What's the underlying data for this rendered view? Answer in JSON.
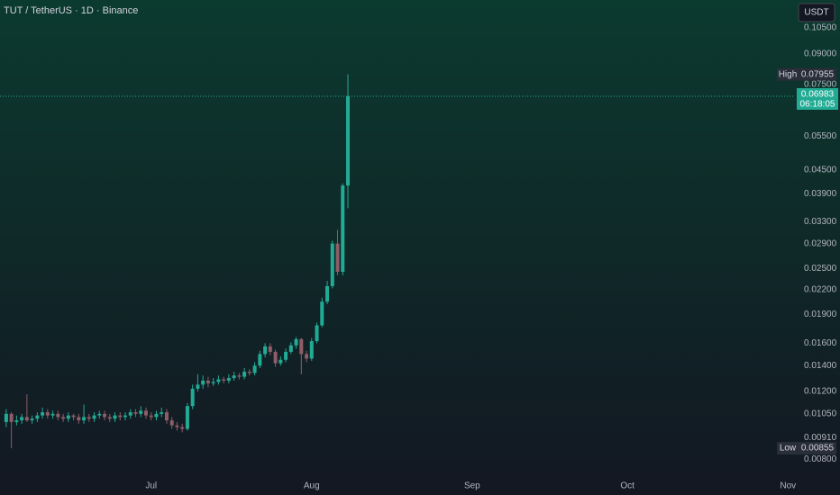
{
  "chart_data": {
    "type": "candlestick",
    "title": "TUT / TetherUS · 1D · Binance",
    "currency": "USDT",
    "log_scale": true,
    "up_color": "#22ab94",
    "down_color": "#8e5d67",
    "open": [
      0.01,
      0.0105,
      0.01,
      0.0101,
      0.0103,
      0.0101,
      0.0102,
      0.0104,
      0.0106,
      0.0104,
      0.0105,
      0.0103,
      0.0102,
      0.0104,
      0.0103,
      0.0101,
      0.0103,
      0.0102,
      0.0104,
      0.0105,
      0.0103,
      0.0102,
      0.0104,
      0.0103,
      0.0104,
      0.0106,
      0.0105,
      0.0107,
      0.0104,
      0.0103,
      0.0105,
      0.0106,
      0.0101,
      0.0098,
      0.0097,
      0.0096,
      0.011,
      0.0122,
      0.0125,
      0.0128,
      0.0126,
      0.0127,
      0.0129,
      0.0128,
      0.013,
      0.0132,
      0.0131,
      0.0135,
      0.0134,
      0.014,
      0.015,
      0.0157,
      0.0152,
      0.0142,
      0.0145,
      0.0152,
      0.0158,
      0.0164,
      0.015,
      0.0146,
      0.0162,
      0.0178,
      0.0205,
      0.0225,
      0.029,
      0.0245,
      0.041
    ],
    "high": [
      0.0108,
      0.0106,
      0.0104,
      0.0105,
      0.0118,
      0.0104,
      0.0106,
      0.0109,
      0.0108,
      0.0107,
      0.0107,
      0.0105,
      0.0106,
      0.0105,
      0.0105,
      0.0111,
      0.0105,
      0.0106,
      0.0107,
      0.0107,
      0.0105,
      0.0106,
      0.0106,
      0.0106,
      0.0108,
      0.0108,
      0.011,
      0.0109,
      0.0106,
      0.0107,
      0.0109,
      0.0108,
      0.0103,
      0.01,
      0.0099,
      0.0112,
      0.0125,
      0.0133,
      0.0132,
      0.0131,
      0.013,
      0.0132,
      0.0131,
      0.0133,
      0.0135,
      0.0134,
      0.0138,
      0.0137,
      0.0143,
      0.0153,
      0.016,
      0.016,
      0.0154,
      0.0148,
      0.0155,
      0.0161,
      0.0166,
      0.0165,
      0.0153,
      0.0165,
      0.0181,
      0.021,
      0.0232,
      0.0295,
      0.0315,
      0.0415,
      0.07955
    ],
    "low": [
      0.0097,
      0.00855,
      0.0098,
      0.0099,
      0.01,
      0.0099,
      0.01,
      0.0102,
      0.0102,
      0.0102,
      0.0101,
      0.01,
      0.01,
      0.0101,
      0.0099,
      0.0099,
      0.01,
      0.01,
      0.0102,
      0.0101,
      0.01,
      0.01,
      0.0101,
      0.0101,
      0.0102,
      0.0103,
      0.0103,
      0.0102,
      0.0101,
      0.0101,
      0.0103,
      0.0099,
      0.0096,
      0.0095,
      0.0094,
      0.0095,
      0.0108,
      0.012,
      0.0122,
      0.0123,
      0.0124,
      0.0125,
      0.0126,
      0.0126,
      0.0128,
      0.0129,
      0.0129,
      0.0132,
      0.0132,
      0.0138,
      0.0147,
      0.0149,
      0.0139,
      0.014,
      0.0143,
      0.015,
      0.0155,
      0.0133,
      0.0143,
      0.0144,
      0.016,
      0.0176,
      0.0202,
      0.0222,
      0.024,
      0.024,
      0.0358
    ],
    "close": [
      0.0105,
      0.01,
      0.0101,
      0.0103,
      0.0101,
      0.0102,
      0.0104,
      0.0106,
      0.0104,
      0.0105,
      0.0103,
      0.0102,
      0.0104,
      0.0103,
      0.0101,
      0.0103,
      0.0102,
      0.0104,
      0.0105,
      0.0103,
      0.0102,
      0.0104,
      0.0103,
      0.0104,
      0.0106,
      0.0105,
      0.0107,
      0.0104,
      0.0103,
      0.0105,
      0.0106,
      0.0101,
      0.0098,
      0.0097,
      0.0096,
      0.011,
      0.0122,
      0.0125,
      0.0128,
      0.0126,
      0.0127,
      0.0129,
      0.0128,
      0.013,
      0.0132,
      0.0131,
      0.0135,
      0.0134,
      0.014,
      0.015,
      0.0157,
      0.0152,
      0.0142,
      0.0145,
      0.0152,
      0.0158,
      0.0164,
      0.015,
      0.0146,
      0.0162,
      0.0178,
      0.0205,
      0.0225,
      0.029,
      0.0245,
      0.041,
      0.06983
    ],
    "countdown": "06:18:05",
    "high_marker": {
      "label": "High",
      "value": 0.07955
    },
    "low_marker": {
      "label": "Low",
      "value": 0.00855
    },
    "xlim": [
      -1.2,
      152
    ],
    "xticks": [
      {
        "value": 28,
        "label": "Jul"
      },
      {
        "value": 59,
        "label": "Aug"
      },
      {
        "value": 90,
        "label": "Sep"
      },
      {
        "value": 120,
        "label": "Oct"
      },
      {
        "value": 151,
        "label": "Nov"
      }
    ],
    "ylim": [
      0.0074,
      0.124
    ],
    "yticks": [
      {
        "value": 0.105,
        "label": "0.10500"
      },
      {
        "value": 0.09,
        "label": "0.09000"
      },
      {
        "value": 0.075,
        "label": "0.07500"
      },
      {
        "value": 0.055,
        "label": "0.05500"
      },
      {
        "value": 0.045,
        "label": "0.04500"
      },
      {
        "value": 0.039,
        "label": "0.03900"
      },
      {
        "value": 0.033,
        "label": "0.03300"
      },
      {
        "value": 0.029,
        "label": "0.02900"
      },
      {
        "value": 0.025,
        "label": "0.02500"
      },
      {
        "value": 0.022,
        "label": "0.02200"
      },
      {
        "value": 0.019,
        "label": "0.01900"
      },
      {
        "value": 0.016,
        "label": "0.01600"
      },
      {
        "value": 0.014,
        "label": "0.01400"
      },
      {
        "value": 0.012,
        "label": "0.01200"
      },
      {
        "value": 0.0105,
        "label": "0.01050"
      },
      {
        "value": 0.0091,
        "label": "0.00910"
      },
      {
        "value": 0.008,
        "label": "0.00800"
      }
    ]
  }
}
